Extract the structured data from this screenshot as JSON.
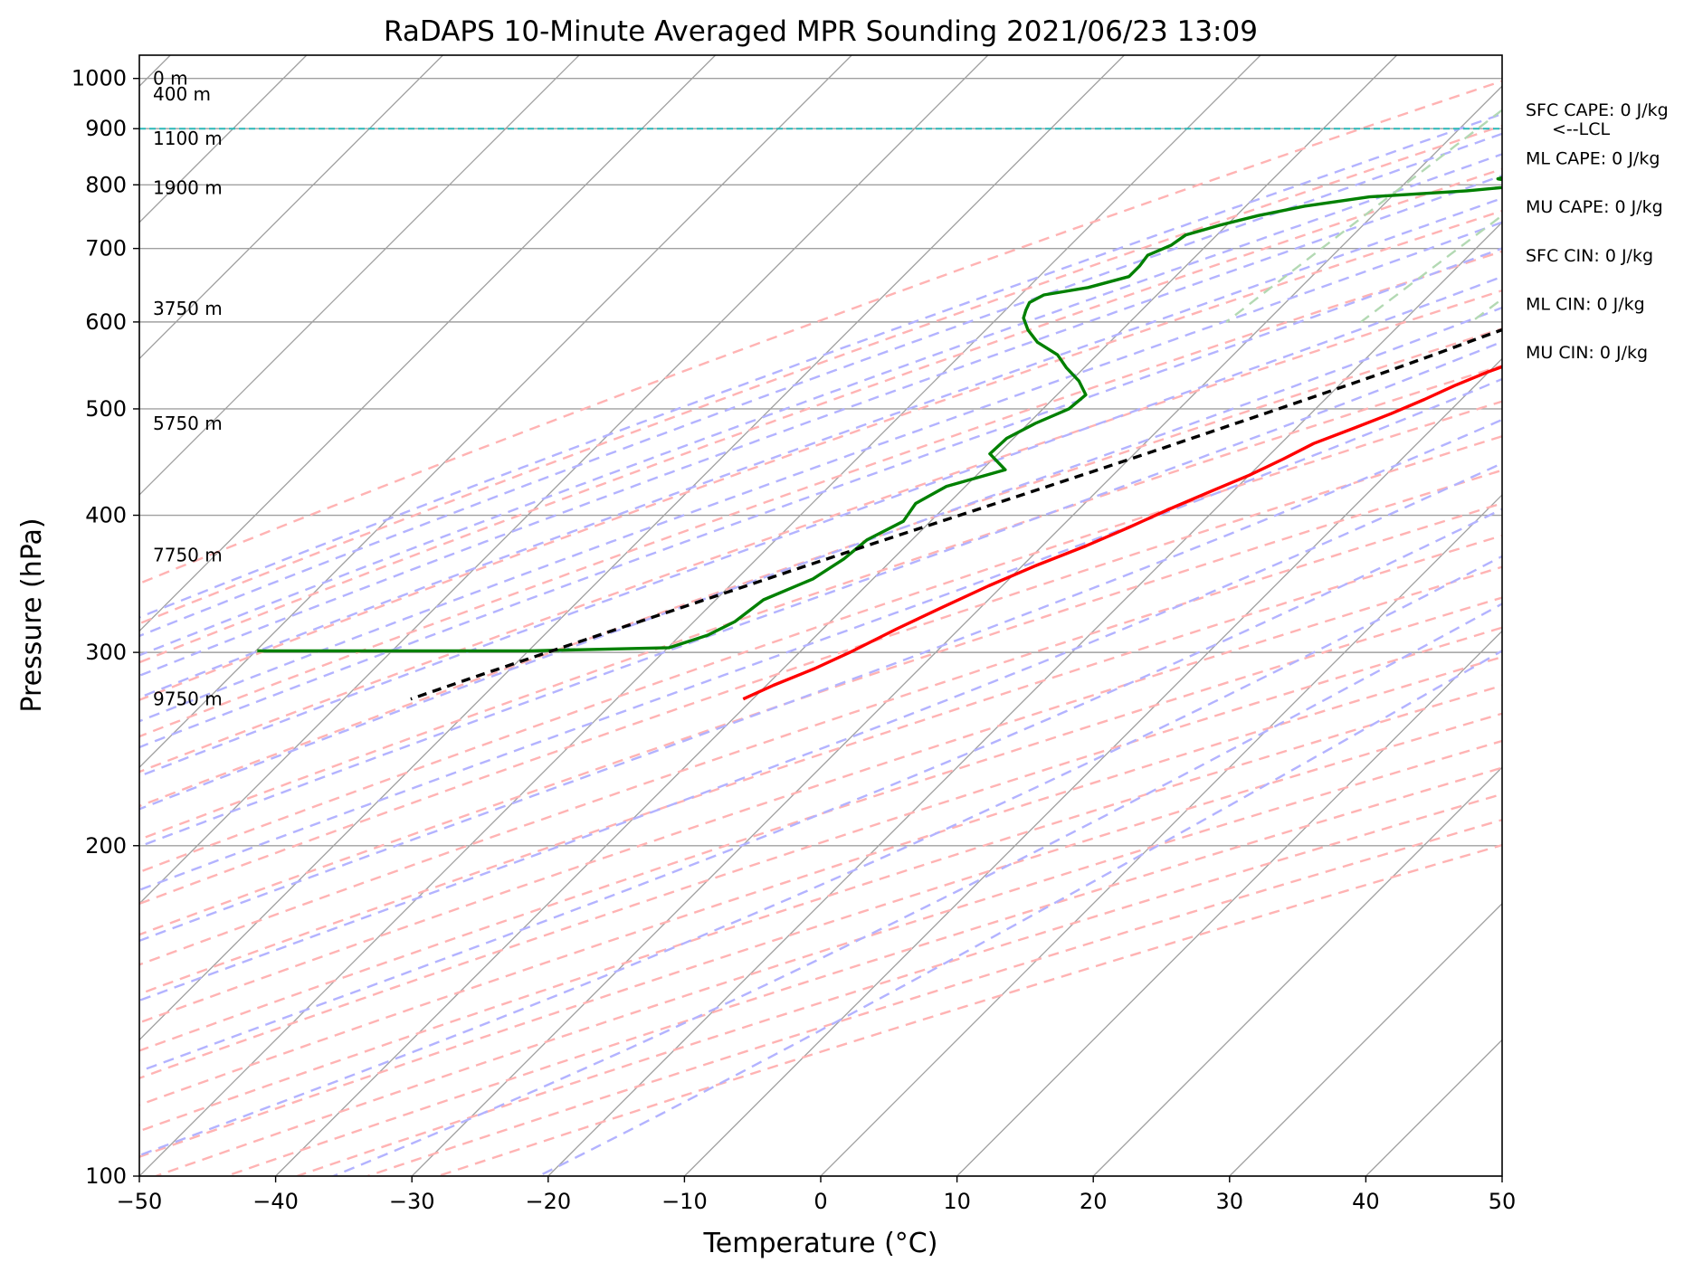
{
  "chart_data": {
    "type": "skew-t",
    "title": "RaDAPS 10-Minute Averaged MPR Sounding 2021/06/23 13:09",
    "xlabel": "Temperature (°C)",
    "ylabel": "Pressure (hPa)",
    "xlim": [
      -50,
      50
    ],
    "ylim": [
      1050,
      100
    ],
    "y_scale": "log",
    "x_ticks": [
      "−50",
      "−40",
      "−30",
      "−20",
      "−10",
      "0",
      "10",
      "20",
      "30",
      "40",
      "50"
    ],
    "y_ticks": [
      "100",
      "200",
      "300",
      "400",
      "500",
      "600",
      "700",
      "800",
      "900",
      "1000"
    ],
    "grid": true,
    "colors": {
      "temperature": "#ff0000",
      "dewpoint": "#008000",
      "parcel": "#000000",
      "dry_adiabats": "#ffb3b3",
      "moist_adiabats": "#b3b3ff",
      "mixing_ratio": "#b3d9b3",
      "lcl_line": "#2ab7b7",
      "isotherms": "#a0a0a0"
    },
    "series": [
      {
        "key": "temperature",
        "pressure": [
          1000,
          990,
          975,
          960,
          945,
          930,
          915,
          900,
          885,
          870,
          855,
          840,
          825,
          810,
          795,
          780,
          765,
          750,
          735,
          720,
          705,
          690,
          675,
          660,
          645,
          630,
          615,
          600,
          585,
          570,
          555,
          540,
          525,
          510,
          495,
          480,
          465,
          450,
          435,
          420,
          405,
          390,
          375,
          360,
          345,
          330,
          315,
          300,
          290,
          280,
          272
        ],
        "values": [
          21.6,
          20.4,
          19.0,
          18.4,
          18.1,
          18.0,
          18.0,
          17.9,
          17.8,
          17.9,
          17.4,
          16.1,
          15.6,
          15.1,
          14.2,
          13.1,
          11.6,
          10.1,
          8.7,
          7.0,
          5.4,
          3.6,
          1.6,
          -0.2,
          -1.9,
          -3.5,
          -4.6,
          -5.6,
          -6.6,
          -7.8,
          -8.4,
          -10.1,
          -11.5,
          -12.7,
          -14.1,
          -15.8,
          -17.6,
          -18.7,
          -20.0,
          -21.7,
          -23.4,
          -25.0,
          -26.8,
          -29.0,
          -31.0,
          -32.8,
          -34.6,
          -36.3,
          -37.7,
          -39.5,
          -40.7
        ]
      },
      {
        "key": "dewpoint",
        "pressure": [
          1000,
          990,
          975,
          960,
          945,
          930,
          915,
          900,
          885,
          870,
          855,
          840,
          825,
          810,
          800,
          790,
          780,
          765,
          750,
          735,
          720,
          705,
          690,
          675,
          660,
          645,
          635,
          625,
          615,
          605,
          590,
          575,
          560,
          545,
          530,
          515,
          500,
          485,
          470,
          455,
          440,
          425,
          410,
          395,
          380,
          365,
          350,
          335,
          320,
          311,
          303,
          301,
          301
        ],
        "values": [
          13.5,
          8.8,
          5.2,
          4.4,
          4.7,
          3.6,
          5.1,
          3.4,
          -0.1,
          -6.8,
          -14.6,
          -19.1,
          -21.8,
          -23.5,
          -20.6,
          -24.9,
          -31.6,
          -35.7,
          -38.4,
          -40.5,
          -42.3,
          -42.6,
          -43.6,
          -43.4,
          -43.4,
          -45.6,
          -48.3,
          -48.8,
          -48.5,
          -48.1,
          -46.9,
          -45.3,
          -42.9,
          -41.3,
          -39.4,
          -37.9,
          -38.1,
          -39.5,
          -40.5,
          -40.6,
          -38.3,
          -41.4,
          -42.4,
          -42.0,
          -43.3,
          -43.6,
          -44.4,
          -46.5,
          -47.0,
          -48.0,
          -49.9,
          -59.9,
          -79.9
        ]
      },
      {
        "key": "parcel",
        "pressure": [
          1000,
          985,
          970,
          955,
          940,
          925,
          910,
          900,
          880,
          860,
          840,
          820,
          800,
          780,
          760,
          740,
          720,
          700,
          680,
          660,
          640,
          620,
          600,
          580,
          560,
          540,
          520,
          500,
          480,
          460,
          440,
          420,
          400,
          380,
          360,
          340,
          320,
          300,
          285,
          272
        ],
        "values": [
          21.6,
          19.0,
          16.6,
          14.6,
          13.3,
          12.0,
          10.3,
          9.1,
          8.2,
          7.2,
          6.2,
          5.1,
          4.0,
          2.8,
          1.6,
          0.3,
          -1.0,
          -2.5,
          -4.0,
          -5.6,
          -7.3,
          -9.2,
          -11.1,
          -13.2,
          -15.3,
          -17.6,
          -20.1,
          -22.7,
          -25.5,
          -28.4,
          -31.5,
          -34.8,
          -38.3,
          -42.0,
          -45.8,
          -49.8,
          -54.0,
          -58.5,
          -62.0,
          -65.1
        ]
      }
    ],
    "height_labels": [
      "9750 m",
      "7750 m",
      "5750 m",
      "3750 m",
      "1900 m",
      "1100 m",
      "400 m",
      "0 m"
    ],
    "height_label_pressures": [
      272,
      368,
      485,
      617,
      795,
      882,
      968,
      1000
    ],
    "lcl": {
      "pressure": 900,
      "label": "<--LCL"
    },
    "indices": [
      {
        "label": "SFC CAPE: 0 J/kg"
      },
      {
        "label": "ML CAPE: 0 J/kg"
      },
      {
        "label": "MU CAPE: 0 J/kg"
      },
      {
        "label": "SFC CIN: 0 J/kg"
      },
      {
        "label": "ML CIN: 0 J/kg"
      },
      {
        "label": "MU CIN: 0 J/kg"
      }
    ]
  }
}
